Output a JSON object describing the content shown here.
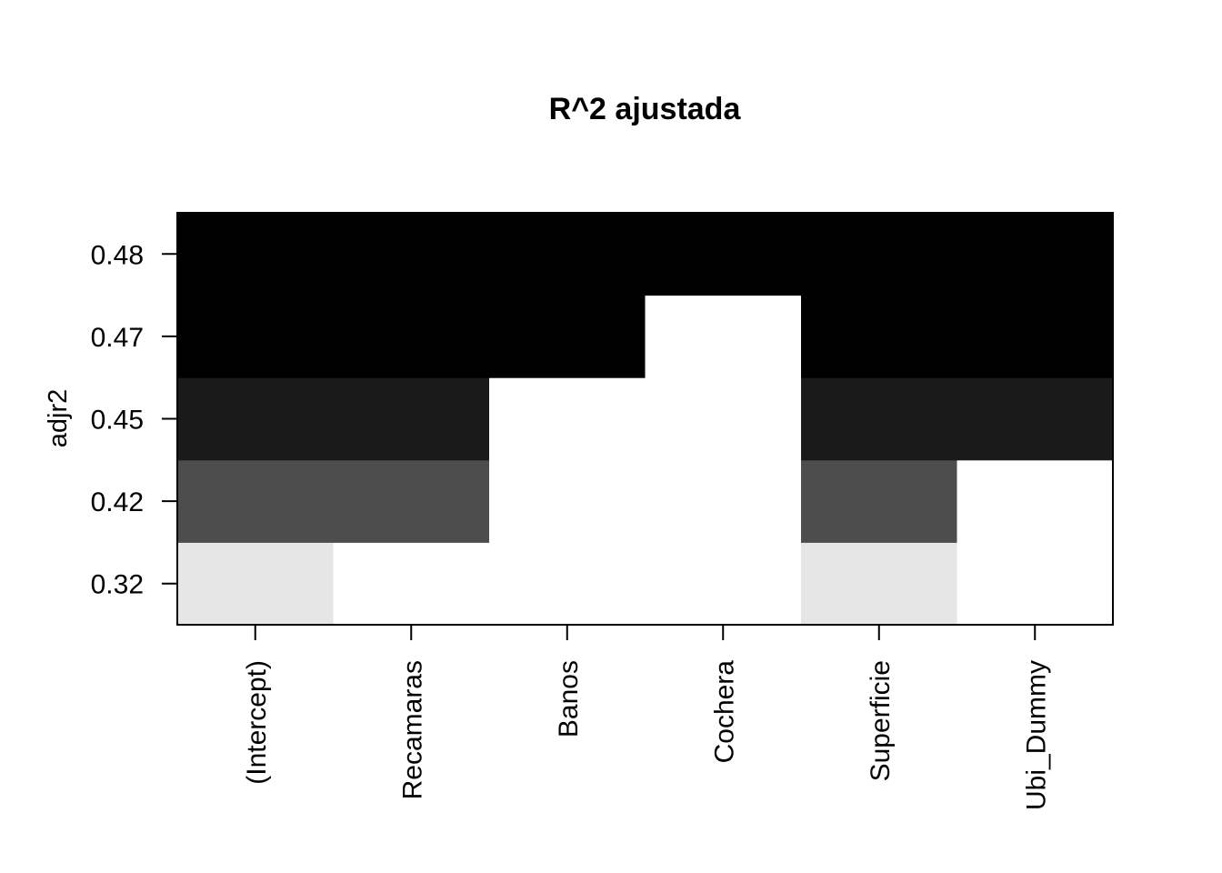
{
  "chart_data": {
    "type": "heatmap",
    "title": "R^2 ajustada",
    "ylabel": "adjr2",
    "xlabel": "",
    "columns": [
      "(Intercept)",
      "Recamaras",
      "Banos",
      "Cochera",
      "Superficie",
      "Ubi_Dummy"
    ],
    "rows": [
      {
        "adjr2": "0.32",
        "included": [
          true,
          false,
          false,
          false,
          true,
          false
        ],
        "shade": "#e6e6e6"
      },
      {
        "adjr2": "0.42",
        "included": [
          true,
          true,
          false,
          false,
          true,
          false
        ],
        "shade": "#4d4d4d"
      },
      {
        "adjr2": "0.45",
        "included": [
          true,
          true,
          false,
          false,
          true,
          true
        ],
        "shade": "#1a1a1a"
      },
      {
        "adjr2": "0.47",
        "included": [
          true,
          true,
          true,
          false,
          true,
          true
        ],
        "shade": "#000000"
      },
      {
        "adjr2": "0.48",
        "included": [
          true,
          true,
          true,
          true,
          true,
          true
        ],
        "shade": "#000000"
      }
    ],
    "grid": false,
    "legend": "none"
  }
}
